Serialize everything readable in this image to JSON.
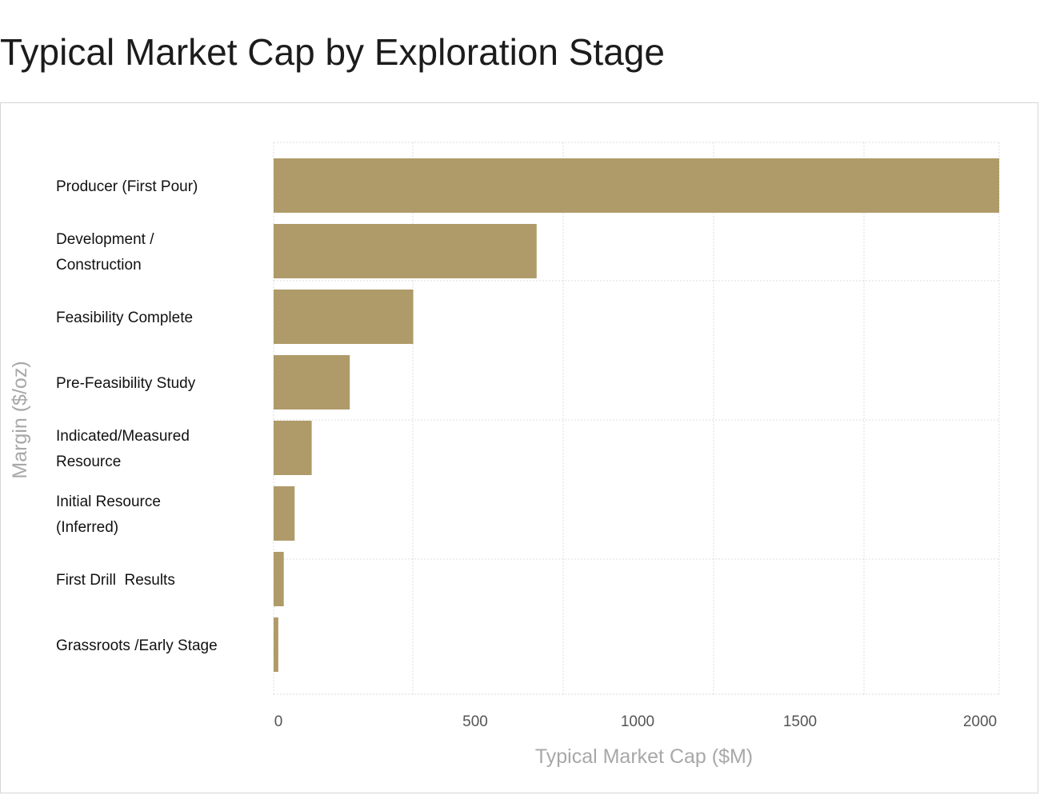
{
  "page": {
    "title": "Typical Market Cap by Exploration Stage"
  },
  "colors": {
    "bar": "#AF9B69",
    "grid": "#dcdcdc",
    "axis_label": "#a8a8a8",
    "tick_label": "#555555",
    "category_label": "#111111"
  },
  "chart_data": {
    "type": "bar",
    "orientation": "horizontal",
    "title": "Typical Market Cap by Exploration Stage",
    "xlabel": "Typical Market Cap ($M)",
    "ylabel": "Margin ($/oz)",
    "xlim": [
      0,
      2000
    ],
    "x_ticks": [
      "0",
      "500",
      "1000",
      "1500",
      "2000"
    ],
    "grid": true,
    "categories": [
      [
        "Producer (First Pour)"
      ],
      [
        "Development /",
        "Construction"
      ],
      [
        "Feasibility Complete"
      ],
      [
        "Pre-Feasibility Study"
      ],
      [
        "Indicated/Measured",
        "Resource"
      ],
      [
        "Initial Resource",
        "(Inferred)"
      ],
      [
        "First Drill  Results"
      ],
      [
        "Grassroots /Early Stage"
      ]
    ],
    "values": [
      2000,
      725,
      385,
      210,
      105,
      58,
      28,
      13
    ]
  }
}
